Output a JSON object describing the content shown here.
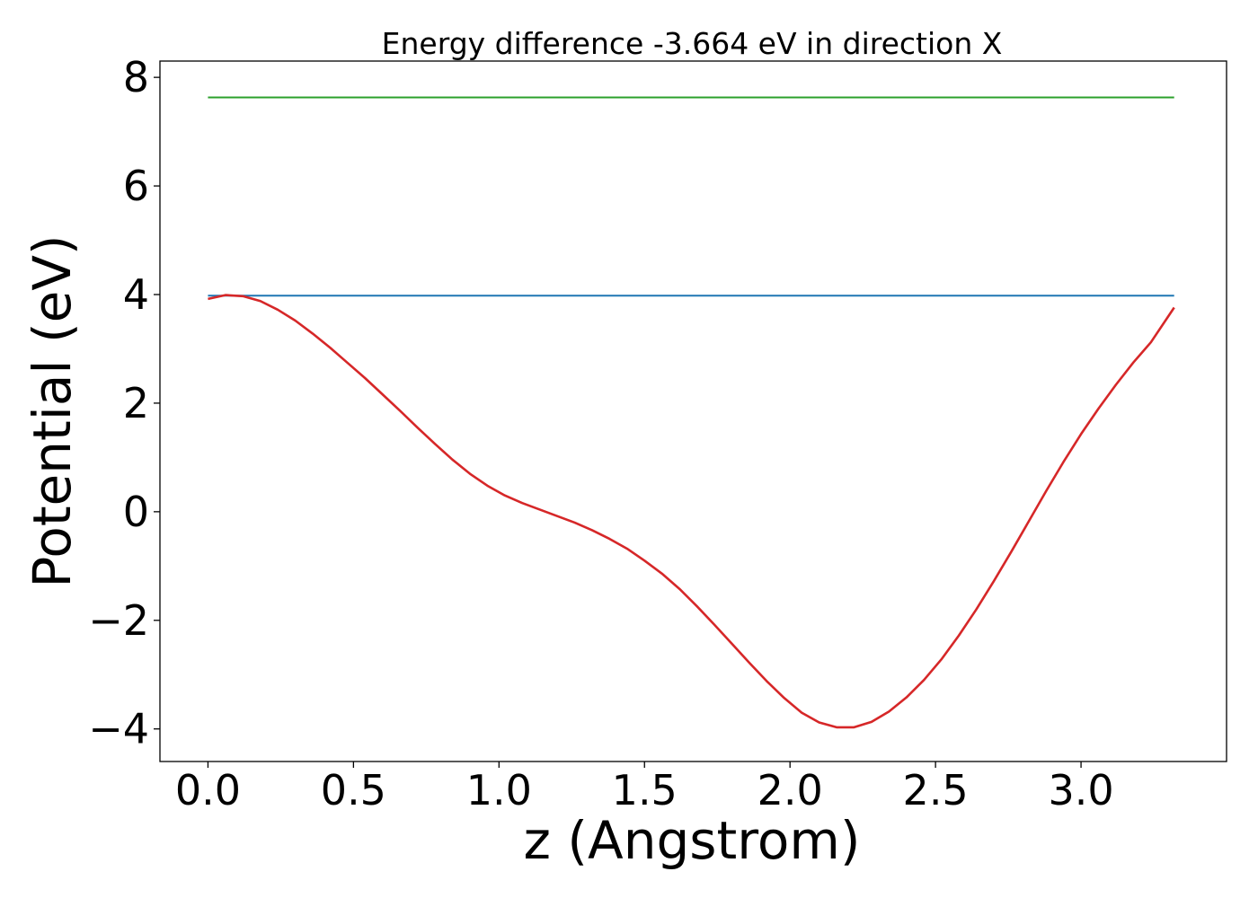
{
  "chart_data": {
    "type": "line",
    "title": "Energy difference -3.664 eV in direction X",
    "xlabel": "z (Angstrom)",
    "ylabel": "Potential (eV)",
    "xlim": [
      -0.165,
      3.5
    ],
    "ylim": [
      -4.6,
      8.3
    ],
    "xticks": [
      0.0,
      0.5,
      1.0,
      1.5,
      2.0,
      2.5,
      3.0
    ],
    "xtick_labels": [
      "0.0",
      "0.5",
      "1.0",
      "1.5",
      "2.0",
      "2.5",
      "3.0"
    ],
    "yticks": [
      -4,
      -2,
      0,
      2,
      4,
      6,
      8
    ],
    "ytick_labels": [
      "−4",
      "−2",
      "0",
      "2",
      "4",
      "6",
      "8"
    ],
    "grid": false,
    "series": [
      {
        "color": "#2ca02c",
        "style": "line",
        "x": [
          0.0,
          3.32
        ],
        "y": [
          7.63,
          7.63
        ]
      },
      {
        "color": "#1f77b4",
        "style": "line",
        "x": [
          0.0,
          3.32
        ],
        "y": [
          3.98,
          3.98
        ]
      },
      {
        "color": "#d62728",
        "style": "line",
        "x": [
          0.0,
          0.06,
          0.12,
          0.18,
          0.24,
          0.3,
          0.36,
          0.42,
          0.48,
          0.54,
          0.6,
          0.66,
          0.72,
          0.78,
          0.84,
          0.9,
          0.96,
          1.02,
          1.08,
          1.14,
          1.2,
          1.26,
          1.32,
          1.38,
          1.44,
          1.5,
          1.56,
          1.62,
          1.68,
          1.74,
          1.8,
          1.86,
          1.92,
          1.98,
          2.04,
          2.1,
          2.16,
          2.22,
          2.28,
          2.34,
          2.4,
          2.46,
          2.52,
          2.58,
          2.64,
          2.7,
          2.76,
          2.82,
          2.88,
          2.94,
          3.0,
          3.06,
          3.12,
          3.18,
          3.24,
          3.32
        ],
        "y": [
          3.92,
          3.99,
          3.97,
          3.88,
          3.72,
          3.52,
          3.28,
          3.02,
          2.74,
          2.46,
          2.16,
          1.86,
          1.55,
          1.25,
          0.96,
          0.7,
          0.48,
          0.3,
          0.16,
          0.04,
          -0.08,
          -0.2,
          -0.34,
          -0.5,
          -0.68,
          -0.9,
          -1.14,
          -1.42,
          -1.74,
          -2.08,
          -2.43,
          -2.78,
          -3.12,
          -3.43,
          -3.7,
          -3.88,
          -3.97,
          -3.97,
          -3.87,
          -3.68,
          -3.42,
          -3.1,
          -2.72,
          -2.28,
          -1.8,
          -1.28,
          -0.74,
          -0.18,
          0.38,
          0.92,
          1.43,
          1.9,
          2.34,
          2.75,
          3.12,
          3.76
        ]
      }
    ]
  }
}
